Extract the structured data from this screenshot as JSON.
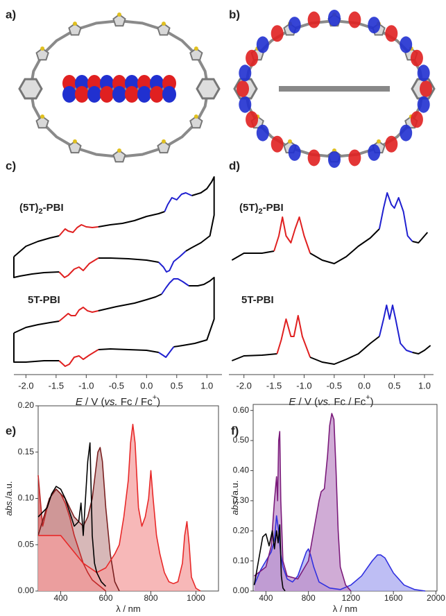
{
  "chart_data": [
    {
      "type": "line",
      "panel": "c)",
      "annotations": [
        [
          "(5T)",
          "2",
          "-PBI"
        ],
        [
          "5T-PBI"
        ]
      ],
      "xlabel": [
        "E",
        " / V (",
        "vs.",
        " Fc / Fc",
        "+",
        ")"
      ],
      "xlim": [
        -2.2,
        1.25
      ],
      "ylim": [
        0,
        285
      ],
      "xticks": [
        {
          "value": -2,
          "label": "-2.0"
        },
        -1.5,
        {
          "value": -1,
          "label": "-1.0"
        },
        -0.5,
        {
          "value": 0,
          "label": "0.0"
        },
        0.5,
        {
          "value": 1,
          "label": "1.0"
        }
      ],
      "series": [
        {
          "color": "#000000",
          "x": [
            -2.2,
            -2.0,
            -1.8,
            -1.6,
            -1.45
          ],
          "values": [
            170,
            185,
            192,
            197,
            200
          ]
        },
        {
          "color": "#e02020",
          "x": [
            -1.45,
            -1.4,
            -1.35,
            -1.3,
            -1.22,
            -1.15,
            -1.08,
            -1.0,
            -0.9,
            -0.8
          ],
          "values": [
            200,
            205,
            210,
            207,
            205,
            212,
            216,
            213,
            212,
            213
          ]
        },
        {
          "color": "#000000",
          "x": [
            -0.8,
            -0.6,
            -0.4,
            -0.2,
            0.0,
            0.1,
            0.2,
            0.3
          ],
          "values": [
            213,
            216,
            218,
            222,
            228,
            230,
            232,
            235
          ]
        },
        {
          "color": "#2020d0",
          "x": [
            0.3,
            0.35,
            0.42,
            0.5,
            0.58,
            0.65,
            0.75
          ],
          "values": [
            235,
            245,
            255,
            252,
            260,
            262,
            258
          ]
        },
        {
          "color": "#000000",
          "x": [
            0.75,
            0.9,
            1.0,
            1.08,
            1.12,
            1.12,
            1.05,
            0.9,
            0.75,
            0.65
          ],
          "values": [
            258,
            262,
            268,
            278,
            285,
            230,
            200,
            190,
            183,
            178
          ]
        },
        {
          "color": "#2020d0",
          "x": [
            0.65,
            0.55,
            0.45,
            0.38,
            0.33,
            0.28,
            0.2
          ],
          "values": [
            178,
            170,
            163,
            150,
            148,
            155,
            162
          ]
        },
        {
          "color": "#000000",
          "x": [
            0.2,
            0.0,
            -0.3,
            -0.6,
            -0.8
          ],
          "values": [
            162,
            165,
            167,
            168,
            168
          ]
        },
        {
          "color": "#e02020",
          "x": [
            -0.8,
            -0.95,
            -1.05,
            -1.12,
            -1.2,
            -1.3,
            -1.36,
            -1.45
          ],
          "values": [
            168,
            160,
            150,
            155,
            152,
            143,
            140,
            148
          ]
        },
        {
          "color": "#000000",
          "x": [
            -1.45,
            -1.7,
            -1.9,
            -2.1,
            -2.2,
            -2.2
          ],
          "values": [
            148,
            147,
            145,
            142,
            140,
            170
          ]
        },
        {
          "color": "#000000",
          "x": [
            -2.2,
            -2.0,
            -1.8,
            -1.6,
            -1.45
          ],
          "values": [
            60,
            68,
            72,
            75,
            77
          ]
        },
        {
          "color": "#e02020",
          "x": [
            -1.45,
            -1.38,
            -1.3,
            -1.25,
            -1.18,
            -1.12,
            -1.05,
            -0.98,
            -0.9,
            -0.8
          ],
          "values": [
            77,
            82,
            88,
            85,
            85,
            93,
            97,
            92,
            90,
            92
          ]
        },
        {
          "color": "#000000",
          "x": [
            -0.8,
            -0.5,
            -0.2,
            0.0,
            0.15,
            0.25
          ],
          "values": [
            92,
            98,
            103,
            108,
            112,
            116
          ]
        },
        {
          "color": "#2020d0",
          "x": [
            0.25,
            0.32,
            0.38,
            0.45,
            0.52,
            0.6,
            0.7
          ],
          "values": [
            116,
            125,
            132,
            138,
            138,
            134,
            128
          ]
        },
        {
          "color": "#000000",
          "x": [
            0.7,
            0.85,
            0.95,
            1.05,
            1.12,
            1.12,
            1.0,
            0.8,
            0.6,
            0.45
          ],
          "values": [
            128,
            128,
            130,
            135,
            140,
            80,
            50,
            45,
            42,
            40
          ]
        },
        {
          "color": "#2020d0",
          "x": [
            0.45,
            0.38,
            0.32,
            0.27,
            0.2
          ],
          "values": [
            40,
            32,
            25,
            28,
            32
          ]
        },
        {
          "color": "#000000",
          "x": [
            0.2,
            0.0,
            -0.3,
            -0.6,
            -0.8
          ],
          "values": [
            32,
            35,
            36,
            37,
            36
          ]
        },
        {
          "color": "#e02020",
          "x": [
            -0.8,
            -0.95,
            -1.05,
            -1.12,
            -1.2,
            -1.28,
            -1.35,
            -1.45
          ],
          "values": [
            36,
            28,
            22,
            27,
            25,
            15,
            12,
            20
          ]
        },
        {
          "color": "#000000",
          "x": [
            -1.45,
            -1.7,
            -2.0,
            -2.2,
            -2.2
          ],
          "values": [
            20,
            20,
            18,
            18,
            60
          ]
        }
      ]
    },
    {
      "type": "line",
      "panel": "d)",
      "annotations": [
        [
          "(5T)",
          "2",
          "-PBI"
        ],
        [
          "5T-PBI"
        ]
      ],
      "xlabel": [
        "E",
        " / V (",
        "vs.",
        " Fc / Fc",
        "+",
        ")"
      ],
      "xlim": [
        -2.25,
        1.15
      ],
      "ylim": [
        0,
        285
      ],
      "xticks": [
        {
          "value": -2,
          "label": "-2.0"
        },
        -1.5,
        {
          "value": -1,
          "label": "-1.0"
        },
        -0.5,
        {
          "value": 0,
          "label": "0.0"
        },
        0.5,
        {
          "value": 1,
          "label": "1.0"
        }
      ],
      "series": [
        {
          "color": "#000000",
          "x": [
            -2.2,
            -2.0,
            -1.7,
            -1.5
          ],
          "values": [
            165,
            175,
            175,
            178
          ]
        },
        {
          "color": "#e02020",
          "x": [
            -1.5,
            -1.42,
            -1.36,
            -1.3,
            -1.22,
            -1.15,
            -1.08,
            -1.0,
            -0.9
          ],
          "values": [
            178,
            200,
            227,
            200,
            190,
            210,
            227,
            200,
            175
          ]
        },
        {
          "color": "#000000",
          "x": [
            -0.9,
            -0.7,
            -0.5,
            -0.3,
            -0.1,
            0.1,
            0.25
          ],
          "values": [
            175,
            165,
            160,
            170,
            185,
            197,
            210
          ]
        },
        {
          "color": "#2020d0",
          "x": [
            0.25,
            0.32,
            0.38,
            0.45,
            0.5,
            0.57,
            0.65,
            0.72,
            0.8
          ],
          "values": [
            210,
            240,
            262,
            245,
            240,
            255,
            235,
            200,
            192
          ]
        },
        {
          "color": "#000000",
          "x": [
            0.8,
            0.9,
            1.0,
            1.05
          ],
          "values": [
            192,
            190,
            200,
            205
          ]
        },
        {
          "color": "#000000",
          "x": [
            -2.2,
            -2.0,
            -1.7,
            -1.45
          ],
          "values": [
            20,
            27,
            28,
            30
          ]
        },
        {
          "color": "#e02020",
          "x": [
            -1.45,
            -1.38,
            -1.3,
            -1.22,
            -1.17,
            -1.1,
            -1.03,
            -0.9
          ],
          "values": [
            30,
            50,
            80,
            55,
            55,
            85,
            55,
            25
          ]
        },
        {
          "color": "#000000",
          "x": [
            -0.9,
            -0.7,
            -0.5,
            -0.3,
            -0.1,
            0.1,
            0.25
          ],
          "values": [
            25,
            18,
            15,
            22,
            30,
            45,
            55
          ]
        },
        {
          "color": "#2020d0",
          "x": [
            0.25,
            0.32,
            0.37,
            0.42,
            0.47,
            0.52,
            0.6,
            0.7,
            0.8
          ],
          "values": [
            55,
            80,
            100,
            80,
            100,
            80,
            45,
            35,
            32
          ]
        },
        {
          "color": "#000000",
          "x": [
            0.8,
            0.9,
            1.0,
            1.1
          ],
          "values": [
            32,
            30,
            35,
            42
          ]
        }
      ]
    },
    {
      "type": "line",
      "panel": "e)",
      "frame": true,
      "xlabel": [
        "λ / nm"
      ],
      "ylabel": [
        "abs.",
        "/a.u."
      ],
      "xlim": [
        300,
        1100
      ],
      "ylim": [
        0,
        0.2
      ],
      "xticks": [
        400,
        600,
        800,
        1000
      ],
      "yticks": [
        {
          "value": 0,
          "label": "0.00"
        },
        0.05,
        {
          "value": 0.1,
          "label": "0.10"
        },
        0.15,
        {
          "value": 0.2,
          "label": "0.20"
        }
      ],
      "series": [
        {
          "color": "#c02828",
          "fill": "#d65050",
          "x": [
            300,
            320,
            340,
            360,
            380,
            400,
            420,
            440,
            460,
            480,
            500,
            520,
            540,
            560,
            580,
            600
          ],
          "values": [
            0.125,
            0.07,
            0.09,
            0.105,
            0.11,
            0.105,
            0.095,
            0.08,
            0.06,
            0.045,
            0.03,
            0.02,
            0.012,
            0.008,
            0.004,
            0.0
          ]
        },
        {
          "color": "#7a2020",
          "fill": "#c9a0a0",
          "x": [
            300,
            350,
            380,
            420,
            460,
            500,
            520,
            540,
            555,
            565,
            575,
            585,
            600,
            620,
            640,
            660
          ],
          "values": [
            0.06,
            0.1,
            0.11,
            0.1,
            0.08,
            0.07,
            0.08,
            0.1,
            0.13,
            0.15,
            0.155,
            0.14,
            0.09,
            0.04,
            0.01,
            0.0
          ]
        },
        {
          "color": "#e82828",
          "fill": "#f4a0a0",
          "x": [
            300,
            400,
            500,
            560,
            600,
            640,
            660,
            680,
            700,
            710,
            720,
            730,
            745,
            760,
            775,
            790,
            800,
            810,
            825,
            840,
            860,
            880,
            900,
            920,
            940,
            950,
            960,
            970,
            980,
            1000,
            1020
          ],
          "values": [
            0.06,
            0.06,
            0.03,
            0.02,
            0.025,
            0.04,
            0.05,
            0.08,
            0.12,
            0.16,
            0.18,
            0.16,
            0.09,
            0.07,
            0.08,
            0.1,
            0.13,
            0.1,
            0.06,
            0.04,
            0.02,
            0.01,
            0.008,
            0.01,
            0.03,
            0.06,
            0.075,
            0.05,
            0.015,
            0.003,
            0.0
          ]
        },
        {
          "color": "#000000",
          "x": [
            300,
            340,
            360,
            380,
            400,
            420,
            440,
            460,
            480,
            490,
            500,
            510,
            520,
            530,
            540,
            550,
            560,
            580,
            600
          ],
          "values": [
            0.08,
            0.09,
            0.105,
            0.113,
            0.11,
            0.1,
            0.085,
            0.07,
            0.075,
            0.095,
            0.06,
            0.1,
            0.14,
            0.16,
            0.06,
            0.03,
            0.02,
            0.01,
            0.005
          ]
        }
      ]
    },
    {
      "type": "line",
      "panel": "f)",
      "frame": true,
      "xlabel": [
        "λ / nm"
      ],
      "ylabel": [
        "abs.",
        "/a.u."
      ],
      "xlim": [
        280,
        2010
      ],
      "ylim": [
        0,
        0.62
      ],
      "xticks": [
        400,
        800,
        1200,
        1600,
        2000
      ],
      "yticks": [
        {
          "value": 0,
          "label": "0.00"
        },
        {
          "value": 0.1,
          "label": "0.10"
        },
        {
          "value": 0.2,
          "label": "0.20"
        },
        {
          "value": 0.3,
          "label": "0.30"
        },
        {
          "value": 0.4,
          "label": "0.40"
        },
        {
          "value": 0.5,
          "label": "0.50"
        },
        {
          "value": 0.6,
          "label": "0.60"
        }
      ],
      "series": [
        {
          "color": "#3030e0",
          "fill": "#a8a8f0",
          "x": [
            290,
            350,
            400,
            450,
            480,
            500,
            520,
            540,
            560,
            600,
            650,
            700,
            750,
            780,
            800,
            820,
            850,
            900,
            1000,
            1100,
            1200,
            1300,
            1400,
            1450,
            1480,
            1520,
            1600,
            1700,
            1800,
            1900
          ],
          "values": [
            0.02,
            0.07,
            0.1,
            0.13,
            0.17,
            0.25,
            0.2,
            0.12,
            0.08,
            0.04,
            0.03,
            0.05,
            0.1,
            0.13,
            0.14,
            0.12,
            0.08,
            0.03,
            0.01,
            0.005,
            0.02,
            0.05,
            0.1,
            0.12,
            0.12,
            0.11,
            0.06,
            0.02,
            0.005,
            0.0
          ]
        },
        {
          "color": "#7a1a7a",
          "fill": "#c090c8",
          "x": [
            290,
            400,
            450,
            480,
            500,
            510,
            520,
            530,
            540,
            560,
            600,
            700,
            800,
            850,
            900,
            920,
            950,
            980,
            1000,
            1020,
            1040,
            1060,
            1080,
            1100,
            1150,
            1200
          ],
          "values": [
            0.05,
            0.08,
            0.15,
            0.3,
            0.38,
            0.3,
            0.5,
            0.53,
            0.3,
            0.1,
            0.05,
            0.04,
            0.1,
            0.2,
            0.3,
            0.33,
            0.34,
            0.45,
            0.55,
            0.59,
            0.57,
            0.4,
            0.2,
            0.08,
            0.02,
            0.0
          ]
        },
        {
          "color": "#000000",
          "x": [
            290,
            330,
            370,
            400,
            430,
            460,
            480,
            500,
            515,
            530,
            545,
            560,
            580
          ],
          "values": [
            0.02,
            0.1,
            0.18,
            0.19,
            0.15,
            0.2,
            0.14,
            0.2,
            0.16,
            0.22,
            0.05,
            0.01,
            0.0
          ]
        }
      ]
    }
  ],
  "molecule_panels": [
    "a)",
    "b)"
  ]
}
